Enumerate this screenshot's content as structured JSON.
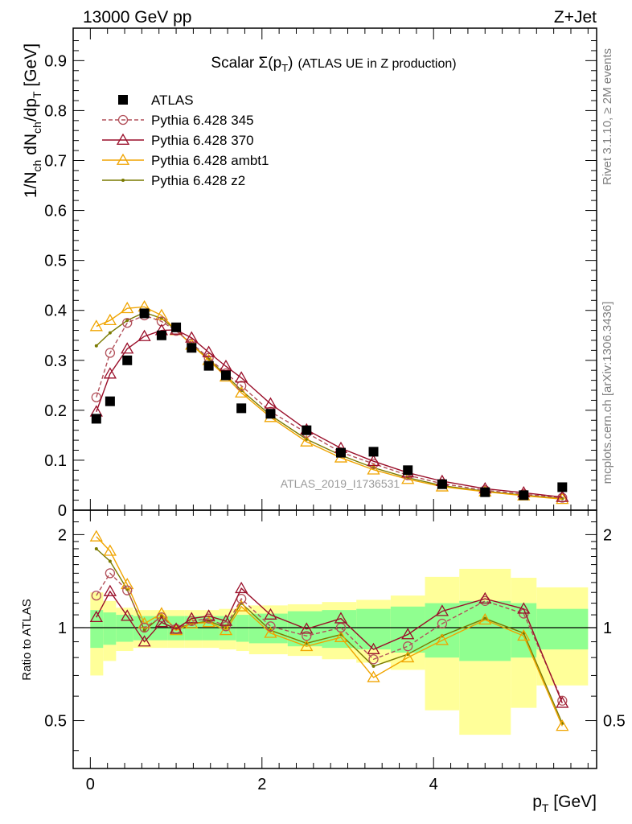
{
  "header": {
    "left": "13000 GeV pp",
    "right": "Z+Jet"
  },
  "plot_title": {
    "main": "Scalar Σ(p",
    "sub": "T",
    "close": ")",
    "desc": "(ATLAS UE in Z production)"
  },
  "side_labels": {
    "rivet": "Rivet 3.1.10, ≥ 2M events",
    "mcplots": "mcplots.cern.ch [arXiv:1306.3436]"
  },
  "watermark": "ATLAS_2019_I1736531",
  "axis_labels": {
    "y_top": {
      "a": "1/N",
      "a_sub": "ch",
      "b": " dN",
      "b_sub": "ch",
      "c": "/dp",
      "c_sub": "T",
      "d": " [GeV]"
    },
    "y_ratio": "Ratio to ATLAS",
    "x": {
      "a": "p",
      "a_sub": "T",
      "b": " [GeV]"
    }
  },
  "legend": [
    {
      "key": "atlas",
      "label": "ATLAS"
    },
    {
      "key": "p345",
      "label": "Pythia 6.428 345"
    },
    {
      "key": "p370",
      "label": "Pythia 6.428 370"
    },
    {
      "key": "ambt1",
      "label": "Pythia 6.428 ambt1"
    },
    {
      "key": "z2",
      "label": "Pythia 6.428 z2"
    }
  ],
  "colors": {
    "atlas": "#000000",
    "p345": "#b2505a",
    "p370": "#9a0f2a",
    "ambt1": "#f0a400",
    "z2": "#7a7a00",
    "band_green": "#90ff90",
    "band_yellow": "#ffff99"
  },
  "chart_data": {
    "type": "scatter",
    "x_ticks": [
      "0",
      "2",
      "4"
    ],
    "y_ticks_top": [
      "0",
      "0.1",
      "0.2",
      "0.3",
      "0.4",
      "0.5",
      "0.6",
      "0.7",
      "0.8",
      "0.9"
    ],
    "y_ticks_ratio": [
      "0.5",
      "1",
      "2"
    ],
    "xlim": [
      -0.2,
      5.9
    ],
    "ylim_top": [
      0,
      0.965
    ],
    "ylim_ratio": [
      0.35,
      2.4
    ],
    "x": [
      0.07,
      0.23,
      0.43,
      0.63,
      0.83,
      1.0,
      1.18,
      1.38,
      1.58,
      1.76,
      2.1,
      2.52,
      2.92,
      3.3,
      3.7,
      4.1,
      4.6,
      5.05,
      5.5
    ],
    "series": [
      {
        "name": "ATLAS",
        "key": "atlas",
        "marker": "square",
        "values": [
          0.183,
          0.218,
          0.3,
          0.394,
          0.35,
          0.366,
          0.325,
          0.289,
          0.27,
          0.204,
          0.193,
          0.16,
          0.115,
          0.117,
          0.08,
          0.052,
          0.036,
          0.03,
          0.046
        ]
      },
      {
        "name": "Pythia 6.428 345",
        "key": "p345",
        "marker": "circle",
        "dash": true,
        "values": [
          0.226,
          0.315,
          0.375,
          0.39,
          0.378,
          0.359,
          0.334,
          0.305,
          0.274,
          0.249,
          0.197,
          0.155,
          0.116,
          0.093,
          0.07,
          0.053,
          0.04,
          0.032,
          0.025
        ]
      },
      {
        "name": "Pythia 6.428 370",
        "key": "p370",
        "marker": "triangle",
        "values": [
          0.197,
          0.273,
          0.323,
          0.348,
          0.36,
          0.361,
          0.345,
          0.316,
          0.288,
          0.265,
          0.213,
          0.161,
          0.124,
          0.098,
          0.075,
          0.058,
          0.043,
          0.035,
          0.026
        ]
      },
      {
        "name": "Pythia 6.428 ambt1",
        "key": "ambt1",
        "marker": "triangle",
        "values": [
          0.368,
          0.38,
          0.404,
          0.407,
          0.39,
          0.36,
          0.331,
          0.3,
          0.267,
          0.235,
          0.186,
          0.137,
          0.105,
          0.081,
          0.062,
          0.047,
          0.037,
          0.029,
          0.022
        ]
      },
      {
        "name": "Pythia 6.428 z2",
        "key": "z2",
        "marker": "dot",
        "values": [
          0.329,
          0.355,
          0.38,
          0.396,
          0.384,
          0.36,
          0.332,
          0.302,
          0.27,
          0.24,
          0.19,
          0.142,
          0.11,
          0.085,
          0.065,
          0.049,
          0.038,
          0.03,
          0.023
        ]
      }
    ],
    "ratio_series": [
      {
        "key": "p345",
        "values": [
          1.27,
          1.5,
          1.32,
          1.0,
          1.08,
          0.99,
          1.05,
          1.07,
          1.01,
          1.24,
          1.01,
          0.94,
          1.0,
          0.79,
          0.87,
          1.03,
          1.22,
          1.11,
          0.58
        ]
      },
      {
        "key": "p370",
        "values": [
          1.08,
          1.31,
          1.09,
          0.9,
          1.04,
          0.99,
          1.07,
          1.09,
          1.05,
          1.34,
          1.1,
          0.99,
          1.07,
          0.85,
          0.95,
          1.13,
          1.24,
          1.15,
          0.57
        ]
      },
      {
        "key": "ambt1",
        "values": [
          1.97,
          1.77,
          1.38,
          1.03,
          1.11,
          0.98,
          1.03,
          1.04,
          0.98,
          1.17,
          0.96,
          0.87,
          0.93,
          0.69,
          0.8,
          0.91,
          1.06,
          0.94,
          0.48
        ]
      },
      {
        "key": "z2",
        "values": [
          1.8,
          1.64,
          1.33,
          0.98,
          1.09,
          0.99,
          1.03,
          1.05,
          1.0,
          1.2,
          0.98,
          0.89,
          0.95,
          0.75,
          0.82,
          0.94,
          1.07,
          0.96,
          0.49
        ]
      }
    ],
    "ratio_bands": {
      "edges": [
        0.0,
        0.15,
        0.3,
        0.5,
        0.7,
        0.9,
        1.1,
        1.3,
        1.5,
        1.7,
        1.85,
        2.3,
        2.7,
        3.1,
        3.5,
        3.9,
        4.3,
        4.9,
        5.2,
        5.8
      ],
      "green_rel": [
        0.14,
        0.12,
        0.1,
        0.09,
        0.09,
        0.09,
        0.09,
        0.09,
        0.09,
        0.1,
        0.11,
        0.13,
        0.14,
        0.15,
        0.17,
        0.2,
        0.22,
        0.2,
        0.15
      ],
      "yellow_rel": [
        0.3,
        0.22,
        0.16,
        0.14,
        0.14,
        0.14,
        0.14,
        0.14,
        0.15,
        0.16,
        0.18,
        0.19,
        0.21,
        0.23,
        0.27,
        0.46,
        0.55,
        0.45,
        0.35
      ]
    }
  }
}
